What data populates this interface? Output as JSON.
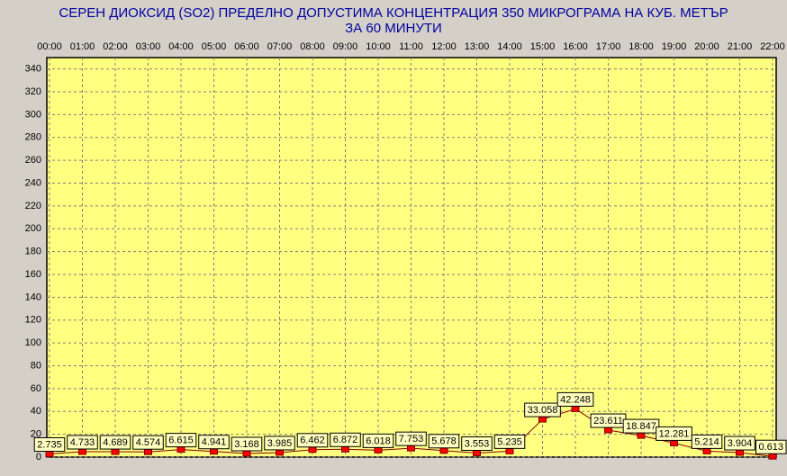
{
  "chart_data": {
    "type": "line",
    "title": "СЕРЕН ДИОКСИД  (SO2)  ПРЕДЕЛНО ДОПУСТИМА КОНЦЕНТРАЦИЯ 350 МИКРОГРАМА  НА КУБ. МЕТЪР",
    "subtitle": "ЗА 60 МИНУТИ",
    "categories": [
      "00:00",
      "01:00",
      "02:00",
      "03:00",
      "04:00",
      "05:00",
      "06:00",
      "07:00",
      "08:00",
      "09:00",
      "10:00",
      "11:00",
      "12:00",
      "13:00",
      "14:00",
      "15:00",
      "16:00",
      "17:00",
      "18:00",
      "19:00",
      "20:00",
      "21:00",
      "22:00"
    ],
    "series": [
      {
        "color": "#ff0000",
        "values": [
          2.735,
          4.733,
          4.689,
          4.574,
          6.615,
          4.941,
          3.168,
          3.985,
          6.462,
          6.872,
          6.018,
          7.753,
          5.678,
          3.553,
          5.235,
          33.058,
          42.248,
          23.611,
          18.847,
          12.281,
          5.214,
          3.904,
          0.613
        ]
      }
    ],
    "ylim": [
      0,
      350
    ],
    "yticks": [
      0,
      20,
      40,
      60,
      80,
      100,
      120,
      140,
      160,
      180,
      200,
      220,
      240,
      260,
      280,
      300,
      320,
      340
    ],
    "grid": true
  }
}
